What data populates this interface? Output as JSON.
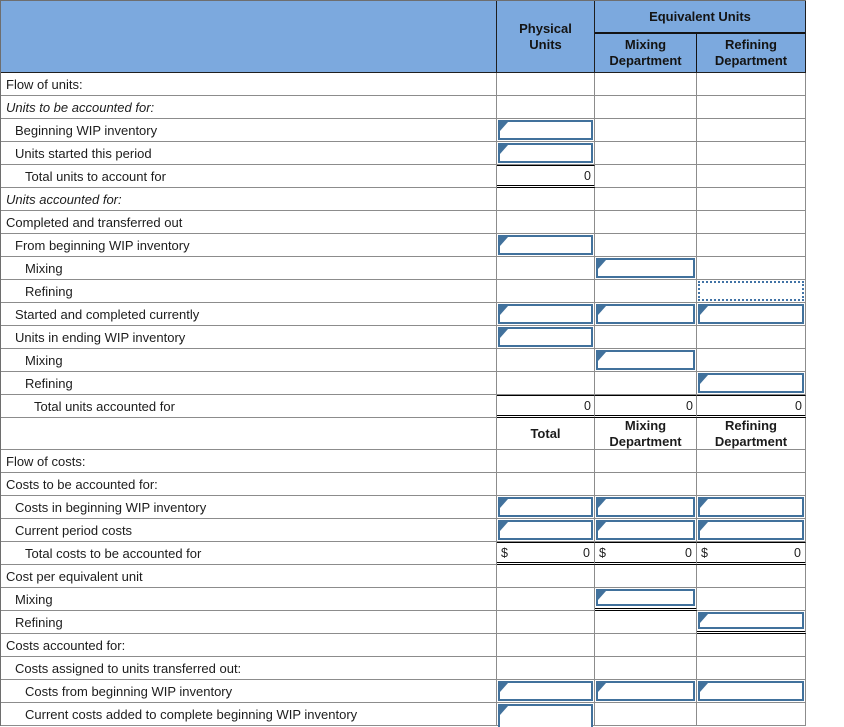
{
  "colors": {
    "header_bg": "#7CA9DE",
    "input_border": "#41719C",
    "grid_line": "#8c8c8c",
    "total_rule": "#000000"
  },
  "icons": {
    "cell_marker": "corner triangle ◤"
  },
  "currency_symbol": "$",
  "header1": {
    "col_physical": "Physical Units",
    "equivalent_units": "Equivalent Units",
    "col_mixing": "Mixing Department",
    "col_refining": "Refining Department"
  },
  "header2": {
    "col_total": "Total",
    "col_mixing": "Mixing Department",
    "col_refining": "Refining Department"
  },
  "rows": {
    "flow_of_units": {
      "label": "Flow of units:"
    },
    "units_to_be_accounted_for": {
      "label": "Units to be accounted for:"
    },
    "beginning_wip": {
      "label": "Beginning WIP inventory"
    },
    "units_started": {
      "label": "Units started this period"
    },
    "total_units_to_account_for": {
      "label": "Total units to account for",
      "physical": "0"
    },
    "units_accounted_for": {
      "label": "Units accounted for:"
    },
    "completed_transferred": {
      "label": "Completed and transferred out"
    },
    "from_beginning_wip": {
      "label": "From beginning WIP inventory"
    },
    "cto_mixing": {
      "label": "Mixing"
    },
    "cto_refining": {
      "label": "Refining"
    },
    "started_completed": {
      "label": "Started and completed currently"
    },
    "ending_wip": {
      "label": "Units in ending WIP inventory"
    },
    "ending_mixing": {
      "label": "Mixing"
    },
    "ending_refining": {
      "label": "Refining"
    },
    "total_units_accounted_for": {
      "label": "Total units accounted for",
      "physical": "0",
      "mixing": "0",
      "refining": "0"
    },
    "flow_of_costs": {
      "label": "Flow of costs:"
    },
    "costs_to_be_accounted_for": {
      "label": "Costs to be accounted for:"
    },
    "costs_beginning_wip": {
      "label": "Costs in beginning WIP inventory"
    },
    "current_period_costs": {
      "label": "Current period costs"
    },
    "total_costs": {
      "label": "Total costs to be accounted for",
      "total": "0",
      "mixing": "0",
      "refining": "0"
    },
    "cost_per_eu": {
      "label": "Cost per equivalent unit"
    },
    "cpeu_mixing": {
      "label": "Mixing"
    },
    "cpeu_refining": {
      "label": "Refining"
    },
    "costs_accounted_for": {
      "label": "Costs accounted for:"
    },
    "costs_assigned": {
      "label": "Costs assigned to units transferred out:"
    },
    "costs_from_beginning_wip": {
      "label": "Costs from beginning WIP inventory"
    },
    "current_costs_added": {
      "label": "Current costs added to complete beginning WIP inventory"
    }
  }
}
